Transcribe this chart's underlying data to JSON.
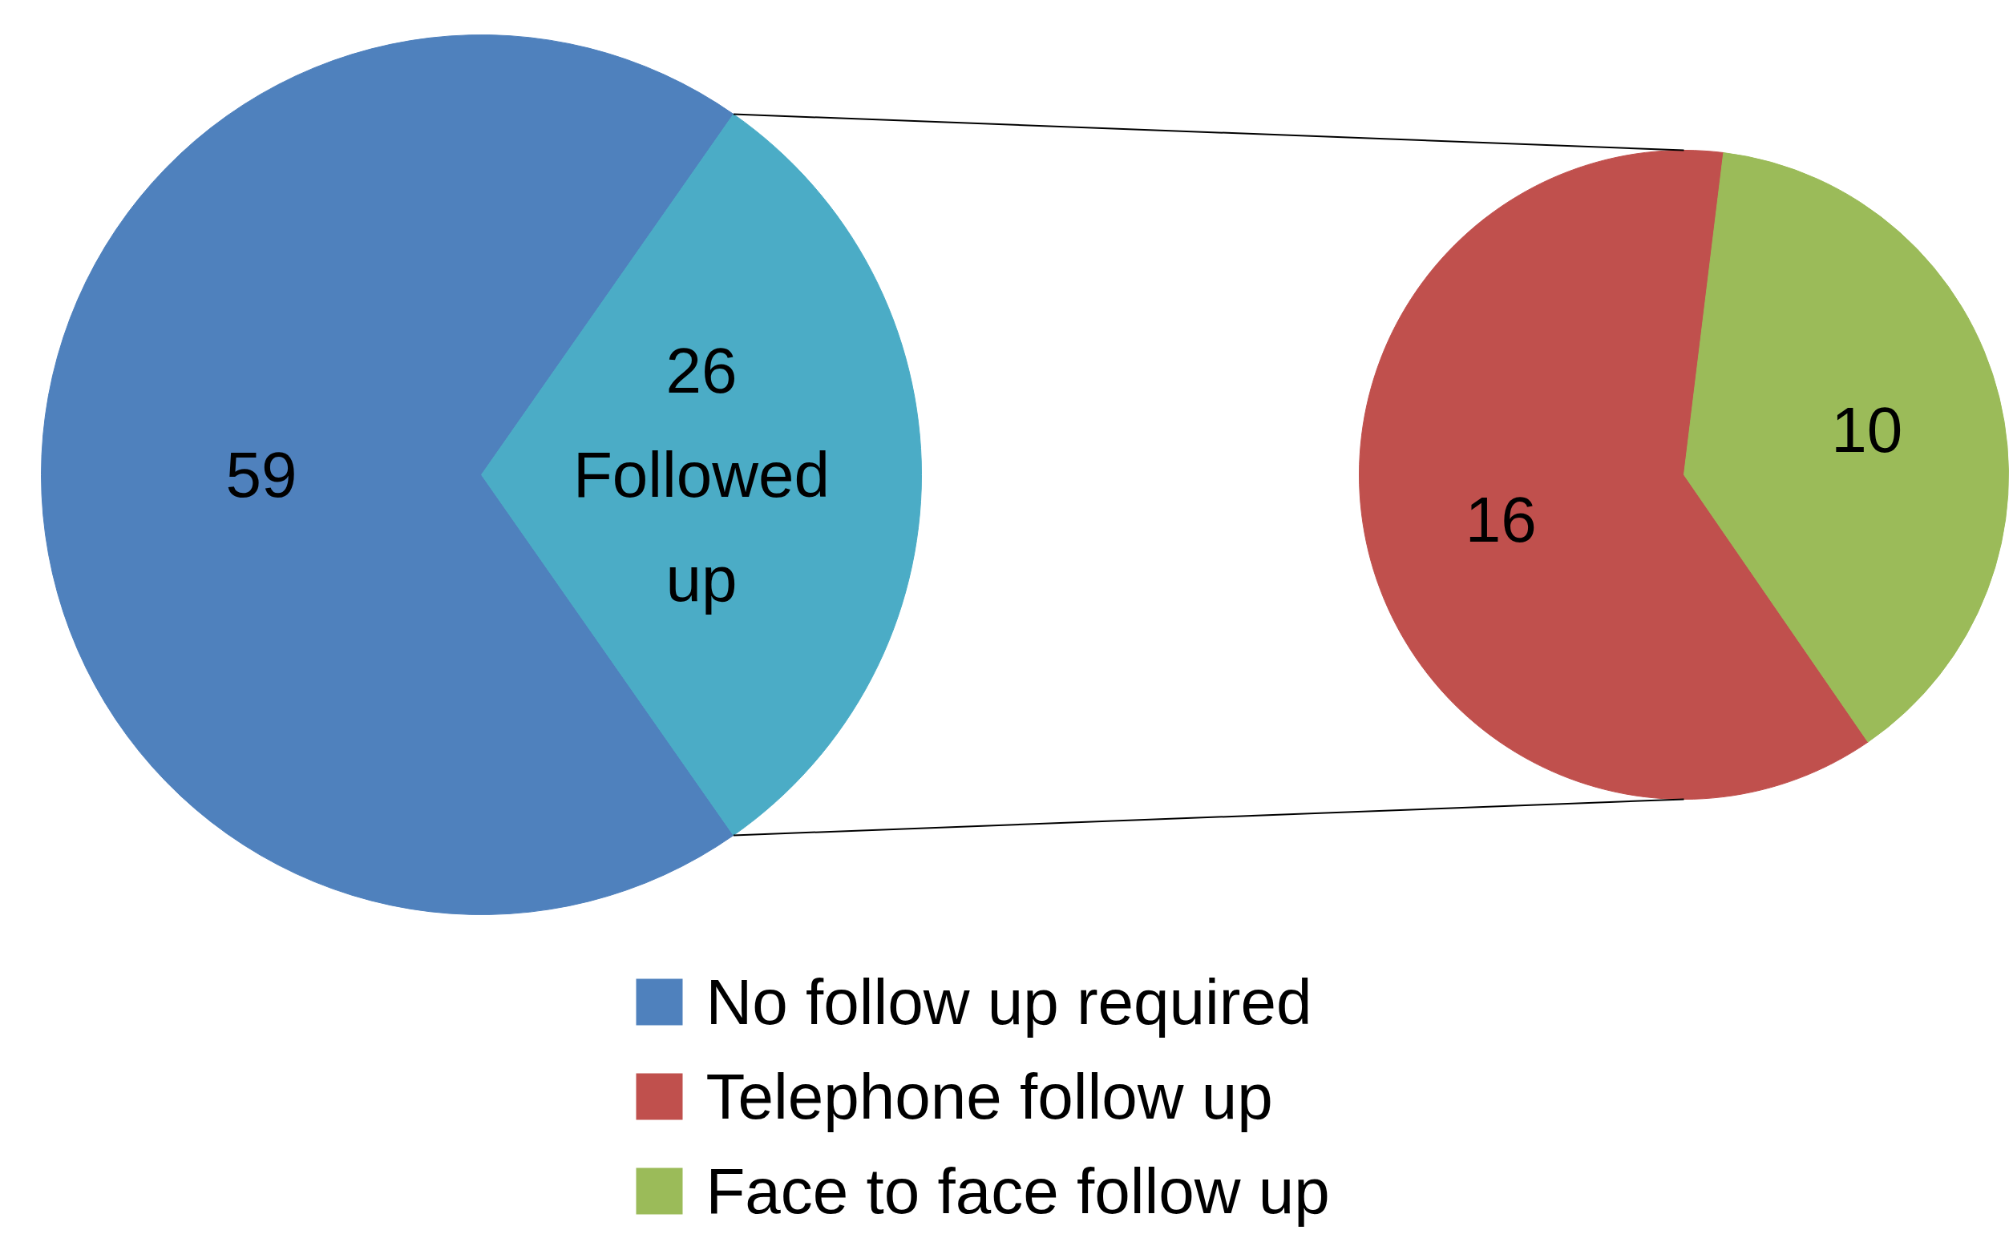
{
  "chart_data": [
    {
      "type": "pie",
      "categories": [
        "No follow up required",
        "Followed up"
      ],
      "values": [
        59,
        26
      ],
      "colors": [
        "#4f81bd",
        "#4bacc6"
      ],
      "data_labels": true,
      "legend": "bottom"
    },
    {
      "type": "pie",
      "categories": [
        "Telephone follow up",
        "Face to face follow up"
      ],
      "values": [
        16,
        10
      ],
      "colors": [
        "#c0504d",
        "#9bbb59"
      ],
      "data_labels": true,
      "legend": "bottom"
    }
  ]
}
